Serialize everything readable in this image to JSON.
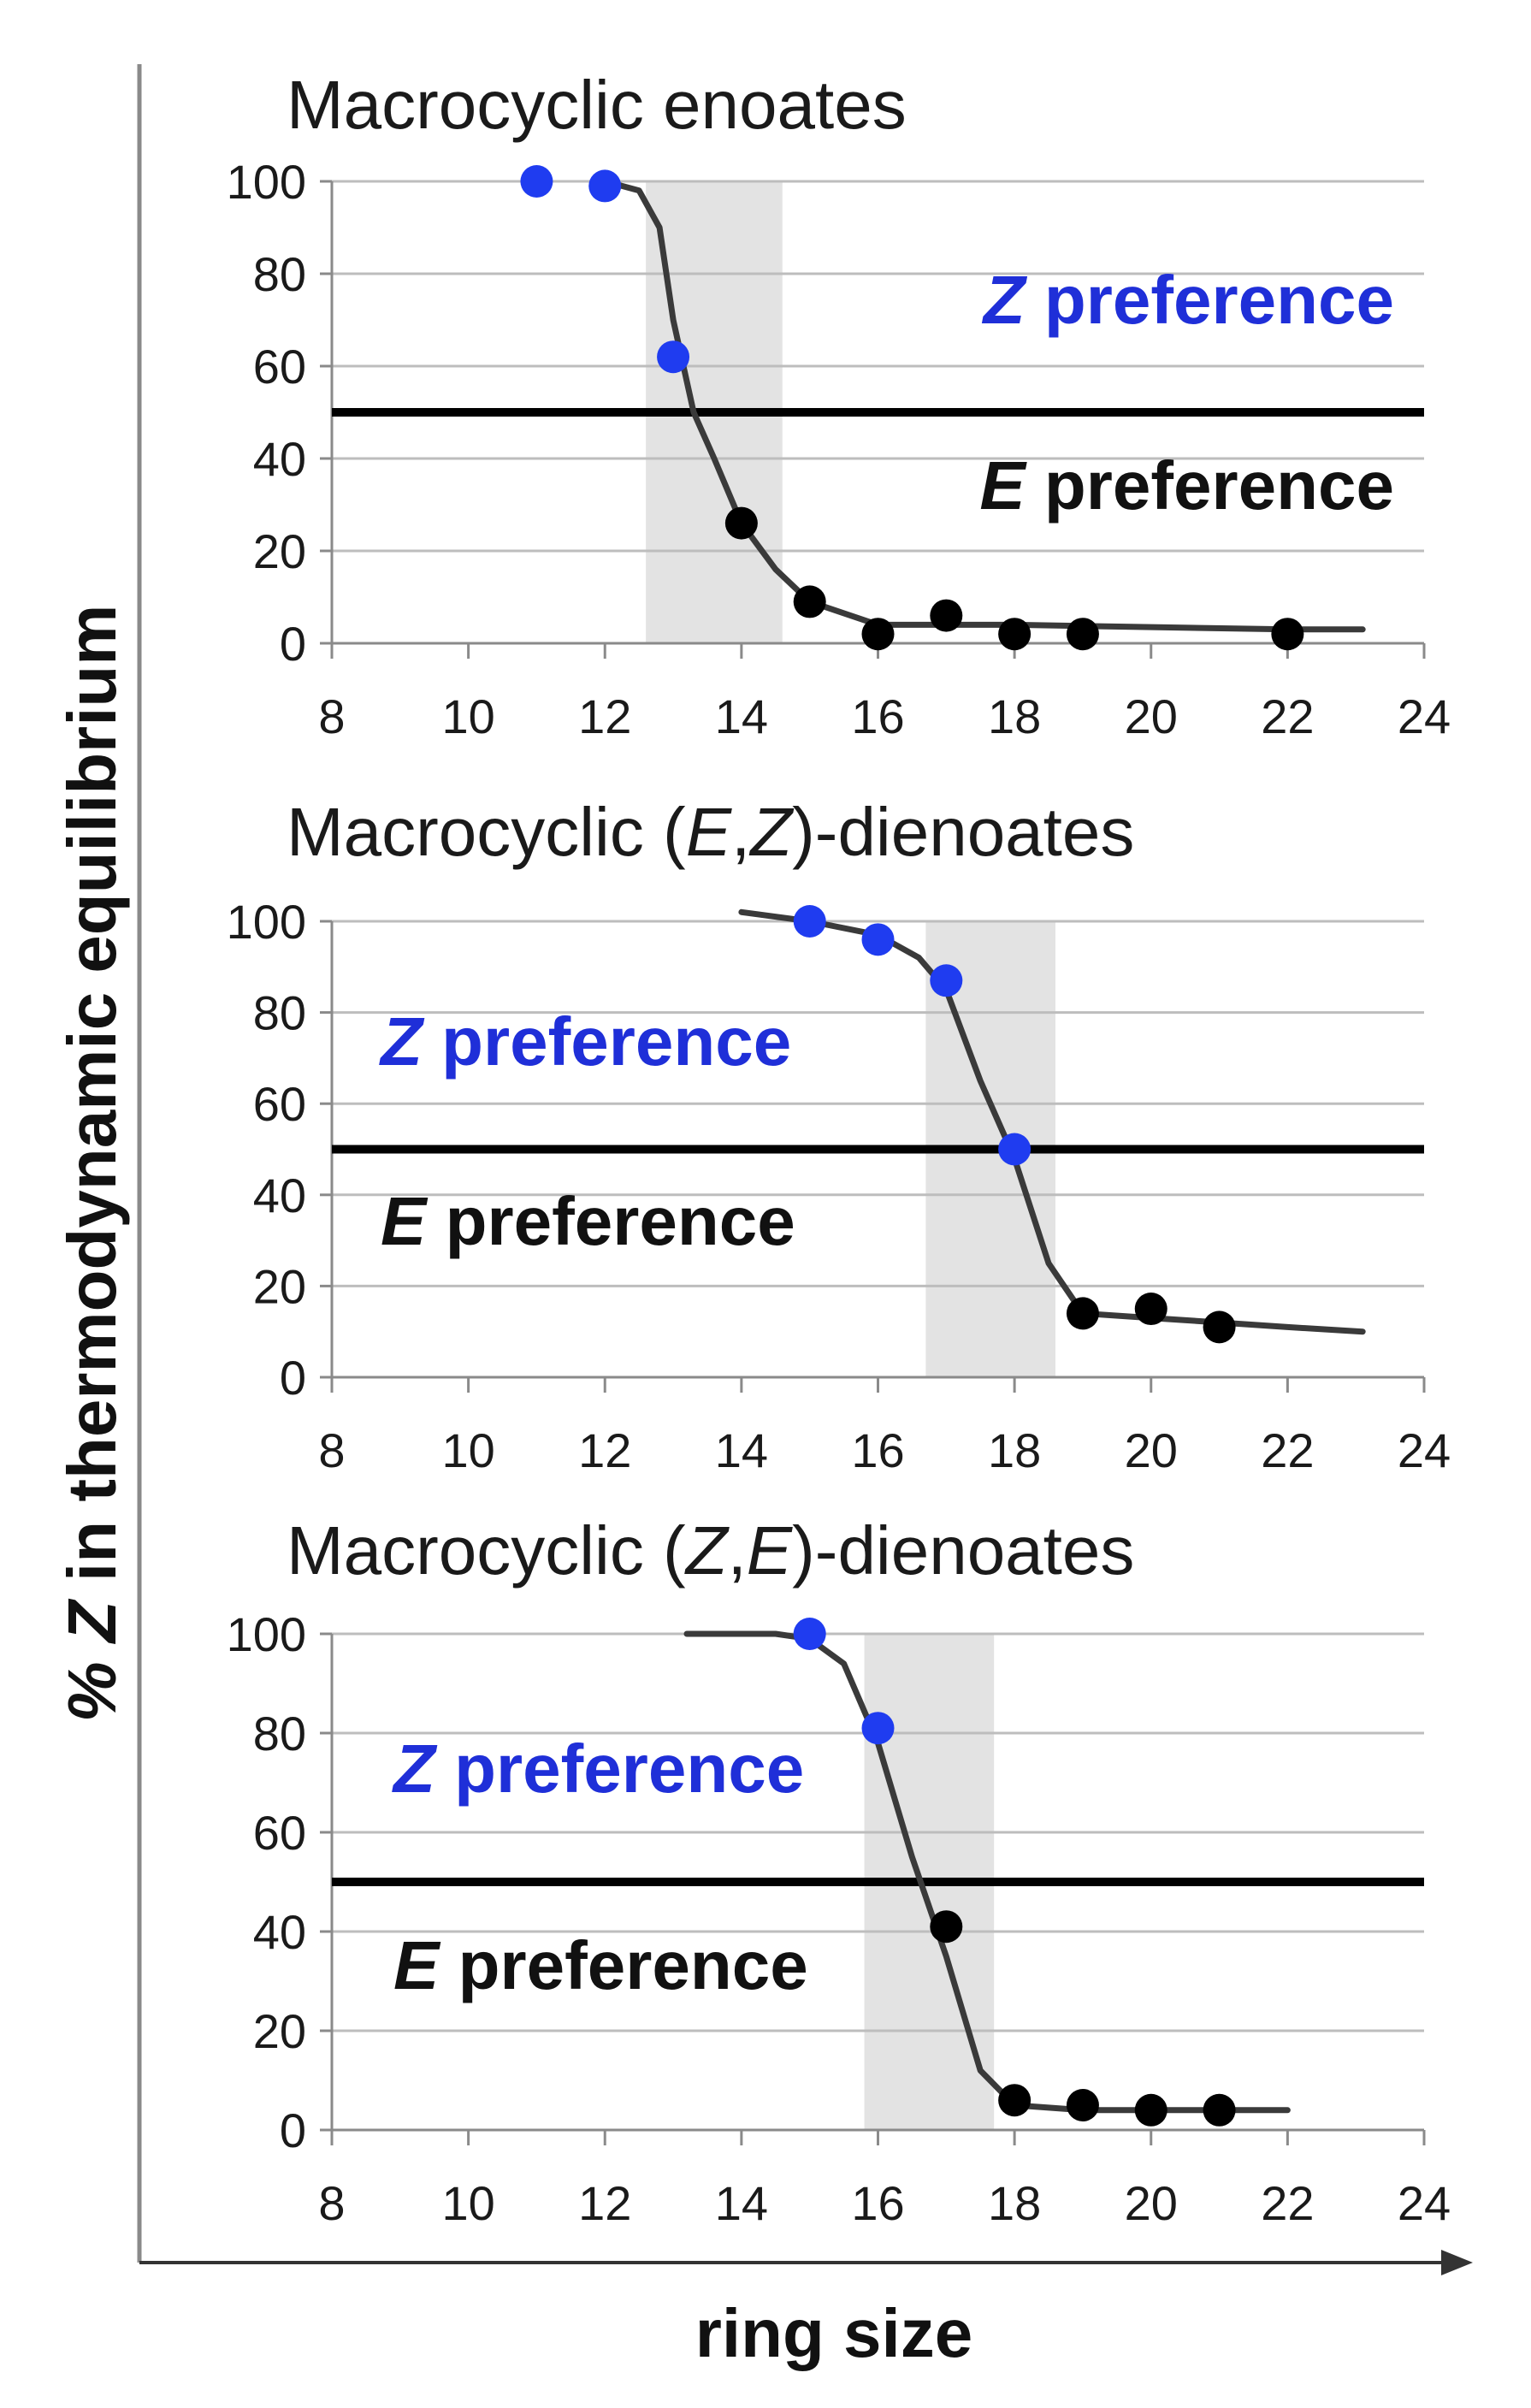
{
  "figure": {
    "y_axis_label_symbol": "% Z",
    "y_axis_label_rest": " in thermodynamic equilibrium",
    "x_axis_label": "ring size"
  },
  "colors": {
    "blue_point": "#1f3cf0",
    "black_point": "#000000",
    "curve": "#3a3a3a",
    "band": "#e3e3e3",
    "grid": "#bdbdbd",
    "threshold": "#000000",
    "z_label": "#1f2fd8",
    "e_label": "#111111"
  },
  "chart_data": [
    {
      "type": "scatter",
      "title": {
        "pre": "Macrocyclic enoates",
        "i1": "",
        "mid": "",
        "i2": "",
        "post": ""
      },
      "xlabel": "ring size",
      "ylabel": "% Z in thermodynamic equilibrium",
      "xlim": [
        8,
        24
      ],
      "ylim": [
        0,
        100
      ],
      "x_ticks": [
        8,
        10,
        12,
        14,
        16,
        18,
        20,
        22,
        24
      ],
      "y_ticks": [
        0,
        20,
        40,
        60,
        80,
        100
      ],
      "grid": true,
      "threshold": 50,
      "shaded_band": [
        12.6,
        14.6
      ],
      "annotations": {
        "z": {
          "symbol": "Z",
          "text": " preference"
        },
        "e": {
          "symbol": "E",
          "text": " preference"
        },
        "position": "right"
      },
      "series": [
        {
          "name": "Z-preferred points",
          "color": "blue",
          "x": [
            11,
            12,
            13
          ],
          "y": [
            100,
            99,
            62
          ]
        },
        {
          "name": "E-preferred points",
          "color": "black",
          "x": [
            14,
            15,
            16,
            17,
            18,
            19,
            22
          ],
          "y": [
            26,
            9,
            2,
            6,
            2,
            2,
            2
          ]
        }
      ],
      "fit_curve": {
        "x": [
          12,
          12.5,
          12.8,
          13,
          13.3,
          13.6,
          14,
          14.5,
          15,
          16,
          18,
          20,
          22,
          23.1
        ],
        "y": [
          100,
          98,
          90,
          70,
          50,
          40,
          26,
          16,
          9,
          4,
          4,
          3.5,
          3,
          3
        ]
      }
    },
    {
      "type": "scatter",
      "title": {
        "pre": "Macrocyclic (",
        "i1": "E",
        "mid": ",",
        "i2": "Z",
        "post": ")-dienoates"
      },
      "xlabel": "ring size",
      "ylabel": "% Z in thermodynamic equilibrium",
      "xlim": [
        8,
        24
      ],
      "ylim": [
        0,
        100
      ],
      "x_ticks": [
        8,
        10,
        12,
        14,
        16,
        18,
        20,
        22,
        24
      ],
      "y_ticks": [
        0,
        20,
        40,
        60,
        80,
        100
      ],
      "grid": true,
      "threshold": 50,
      "shaded_band": [
        16.7,
        18.6
      ],
      "annotations": {
        "z": {
          "symbol": "Z",
          "text": " preference"
        },
        "e": {
          "symbol": "E",
          "text": " preference"
        },
        "position": "left"
      },
      "series": [
        {
          "name": "Z-preferred points",
          "color": "blue",
          "x": [
            15,
            16,
            17,
            18
          ],
          "y": [
            100,
            96,
            87,
            50
          ]
        },
        {
          "name": "E-preferred points",
          "color": "black",
          "x": [
            19,
            20,
            21
          ],
          "y": [
            14,
            15,
            11
          ]
        }
      ],
      "fit_curve": {
        "x": [
          14,
          15,
          16,
          16.6,
          17,
          17.5,
          18,
          18.5,
          19,
          20,
          21,
          22,
          23.1
        ],
        "y": [
          102,
          100,
          97,
          92,
          85,
          65,
          48,
          25,
          14,
          13,
          12,
          11,
          10
        ]
      }
    },
    {
      "type": "scatter",
      "title": {
        "pre": "Macrocyclic (",
        "i1": "Z",
        "mid": ",",
        "i2": "E",
        "post": ")-dienoates"
      },
      "xlabel": "ring size",
      "ylabel": "% Z in thermodynamic equilibrium",
      "xlim": [
        8,
        24
      ],
      "ylim": [
        0,
        100
      ],
      "x_ticks": [
        8,
        10,
        12,
        14,
        16,
        18,
        20,
        22,
        24
      ],
      "y_ticks": [
        0,
        20,
        40,
        60,
        80,
        100
      ],
      "grid": true,
      "threshold": 50,
      "shaded_band": [
        15.8,
        17.7
      ],
      "annotations": {
        "z": {
          "symbol": "Z",
          "text": " preference"
        },
        "e": {
          "symbol": "E",
          "text": " preference"
        },
        "position": "left"
      },
      "series": [
        {
          "name": "Z-preferred points",
          "color": "blue",
          "x": [
            15,
            16
          ],
          "y": [
            100,
            81
          ]
        },
        {
          "name": "E-preferred points",
          "color": "black",
          "x": [
            17,
            18,
            19,
            20,
            21
          ],
          "y": [
            41,
            6,
            5,
            4,
            4
          ]
        }
      ],
      "fit_curve": {
        "x": [
          13.2,
          14.5,
          15,
          15.5,
          16,
          16.5,
          17,
          17.5,
          18,
          19,
          20,
          21,
          22
        ],
        "y": [
          100,
          100,
          99,
          94,
          78,
          55,
          35,
          12,
          5,
          4,
          4,
          4,
          4
        ]
      }
    }
  ]
}
